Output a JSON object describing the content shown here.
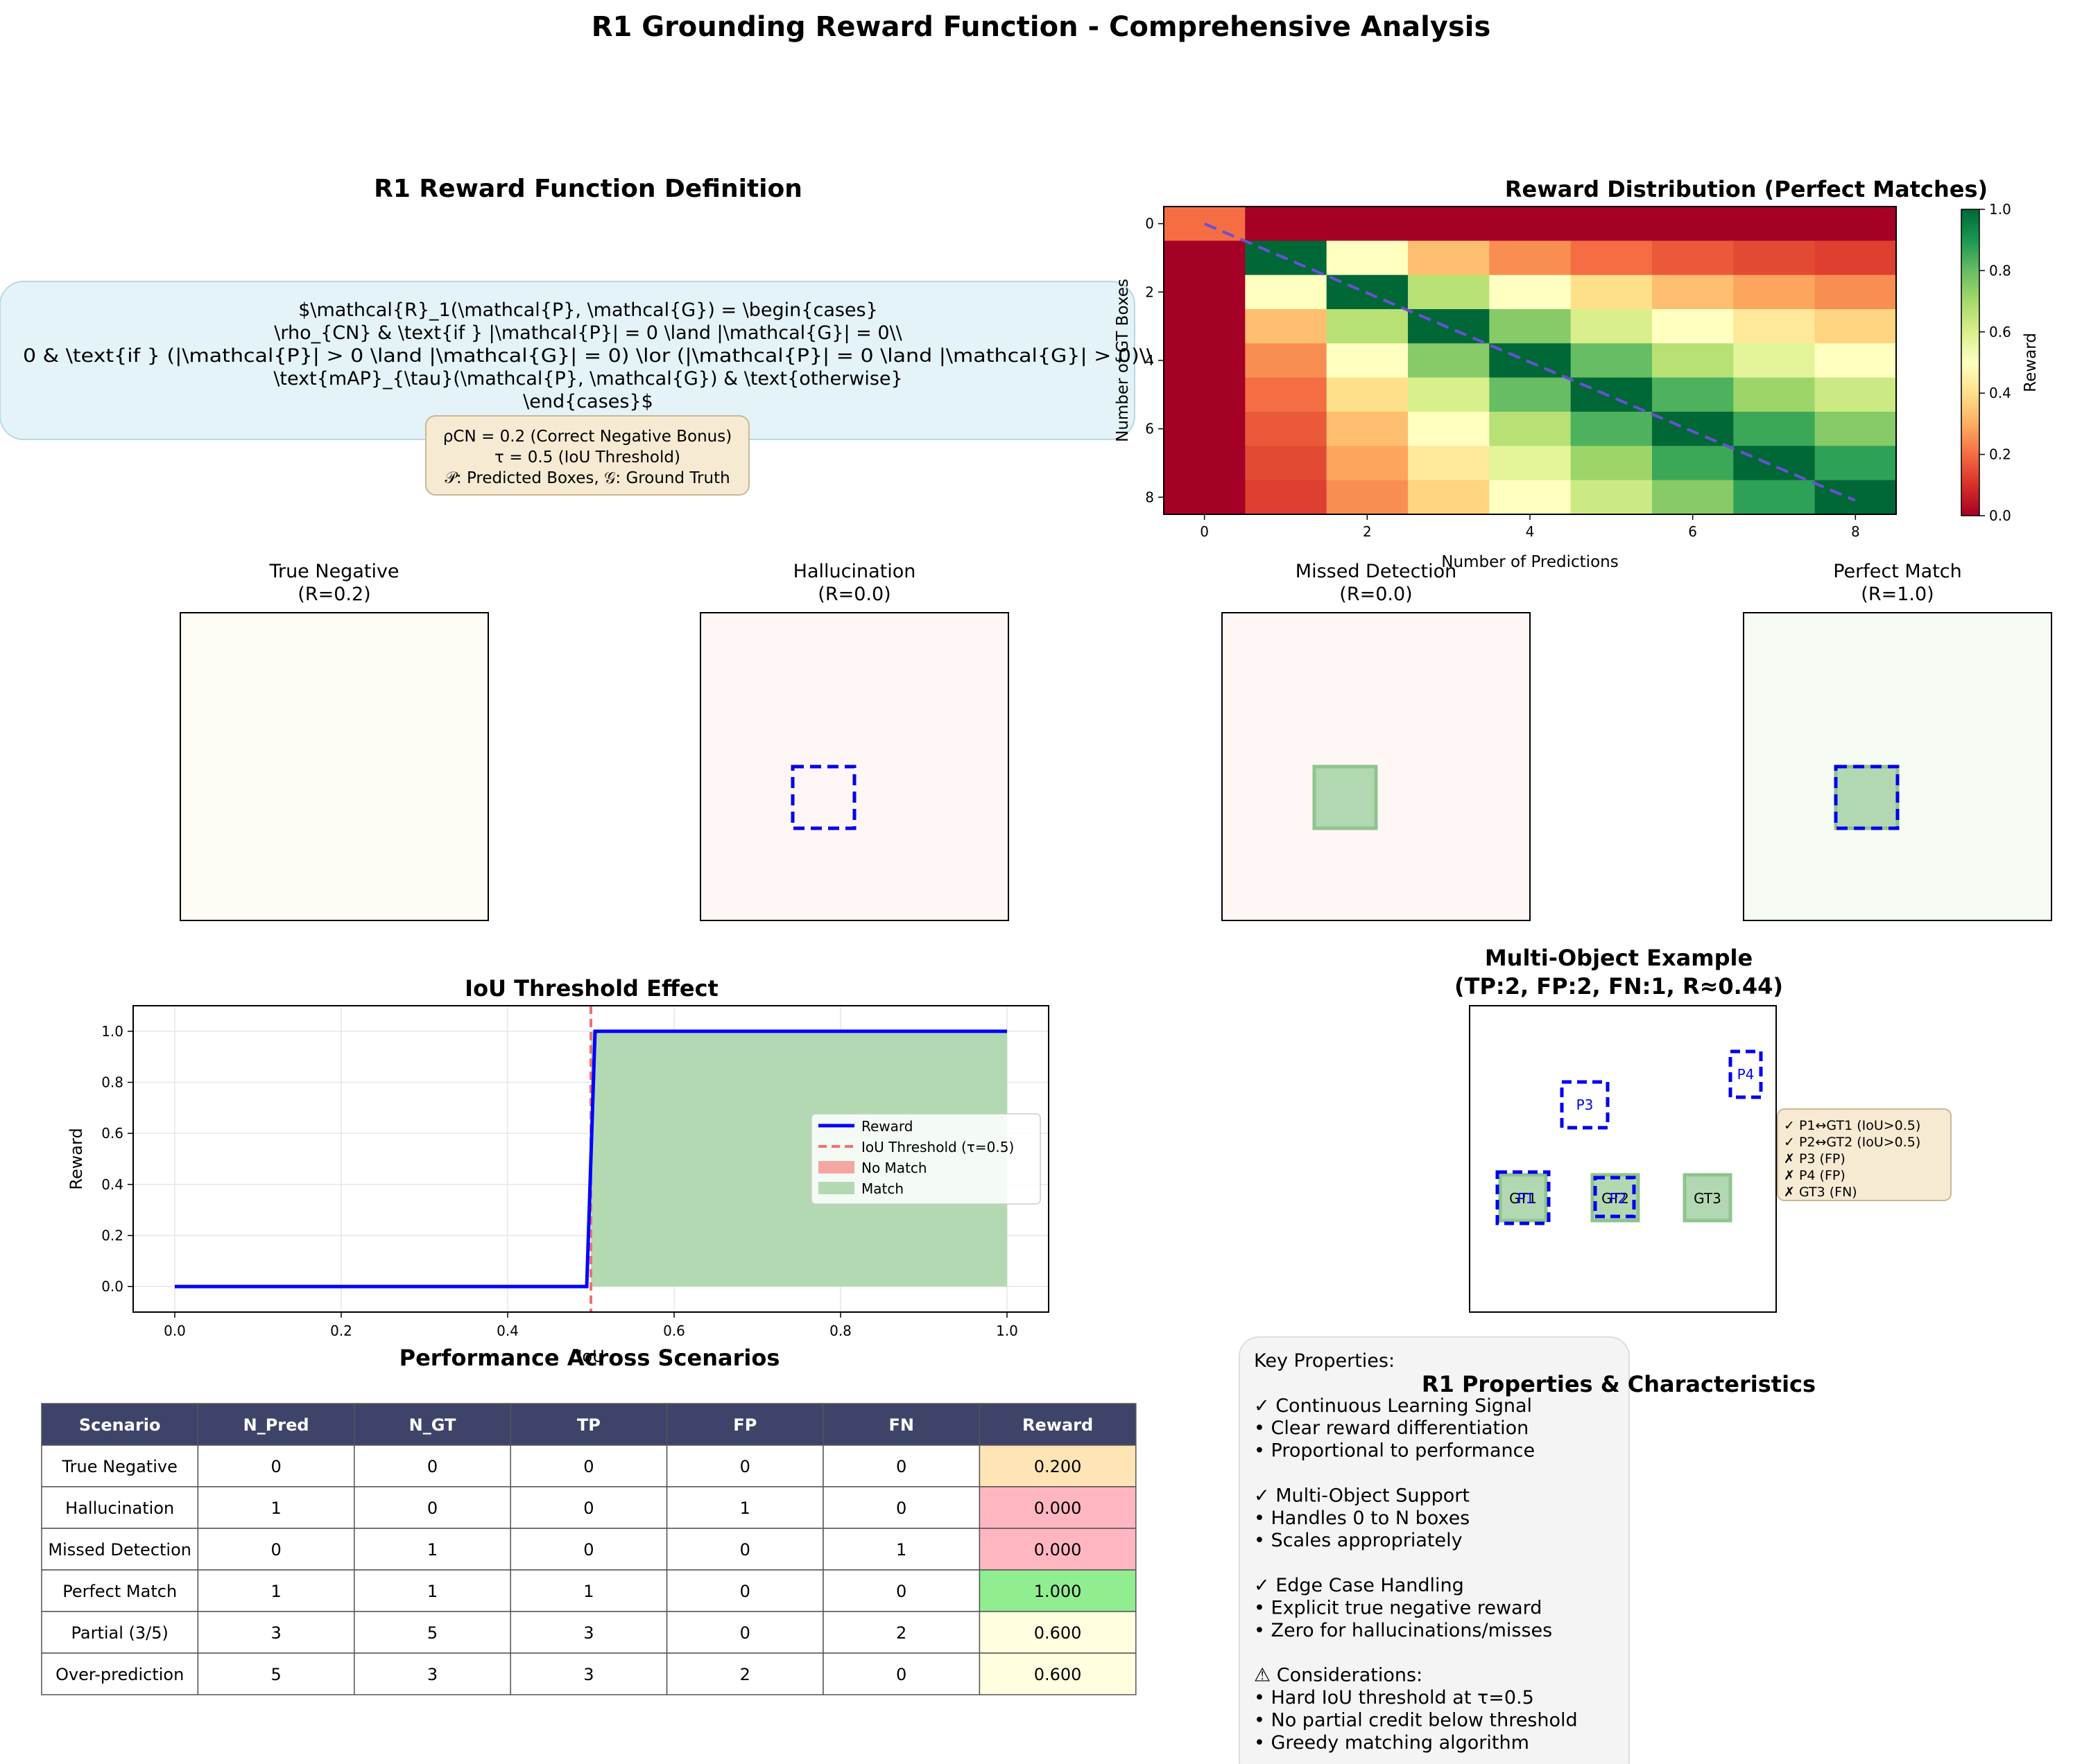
{
  "figure_title": "R1 Grounding Reward Function - Comprehensive Analysis",
  "definition": {
    "title": "R1 Reward Function Definition",
    "formula_lines": [
      "$\\mathcal{R}_1(\\mathcal{P}, \\mathcal{G}) = \\begin{cases}",
      "\\rho_{CN} & \\text{if } |\\mathcal{P}| = 0 \\land |\\mathcal{G}| = 0\\\\",
      "0 & \\text{if } (|\\mathcal{P}| > 0 \\land |\\mathcal{G}| = 0) \\lor (|\\mathcal{P}| = 0 \\land |\\mathcal{G}| > 0)\\\\",
      "\\text{mAP}_{\\tau}(\\mathcal{P}, \\mathcal{G}) & \\text{otherwise}",
      "\\end{cases}$"
    ],
    "params": [
      "ρCN = 0.2 (Correct Negative Bonus)",
      "τ = 0.5 (IoU Threshold)",
      "𝒫: Predicted Boxes, 𝒢: Ground Truth"
    ]
  },
  "chart_data": [
    {
      "type": "heatmap",
      "title": "Reward Distribution (Perfect Matches)",
      "xlabel": "Number of Predictions",
      "ylabel": "Number of GT Boxes",
      "x": [
        0,
        1,
        2,
        3,
        4,
        5,
        6,
        7,
        8
      ],
      "y": [
        0,
        1,
        2,
        3,
        4,
        5,
        6,
        7,
        8
      ],
      "x_ticks": [
        0,
        2,
        4,
        6,
        8
      ],
      "y_ticks": [
        0,
        2,
        4,
        6,
        8
      ],
      "colorbar": {
        "label": "Reward",
        "range": [
          0,
          1
        ],
        "ticks": [
          "0.0",
          "0.2",
          "0.4",
          "0.6",
          "0.8",
          "1.0"
        ]
      },
      "colormap": "RdYlGn",
      "diagonal_line": "dashed",
      "values": [
        [
          0.2,
          0,
          0,
          0,
          0,
          0,
          0,
          0,
          0
        ],
        [
          0,
          1.0,
          0.5,
          0.333,
          0.25,
          0.2,
          0.167,
          0.143,
          0.125
        ],
        [
          0,
          0.5,
          1.0,
          0.667,
          0.5,
          0.4,
          0.333,
          0.286,
          0.25
        ],
        [
          0,
          0.333,
          0.667,
          1.0,
          0.75,
          0.6,
          0.5,
          0.429,
          0.375
        ],
        [
          0,
          0.25,
          0.5,
          0.75,
          1.0,
          0.8,
          0.667,
          0.571,
          0.5
        ],
        [
          0,
          0.2,
          0.4,
          0.6,
          0.8,
          1.0,
          0.833,
          0.714,
          0.625
        ],
        [
          0,
          0.167,
          0.333,
          0.5,
          0.667,
          0.833,
          1.0,
          0.857,
          0.75
        ],
        [
          0,
          0.143,
          0.286,
          0.429,
          0.571,
          0.714,
          0.857,
          1.0,
          0.875
        ],
        [
          0,
          0.125,
          0.25,
          0.375,
          0.5,
          0.625,
          0.75,
          0.875,
          1.0
        ]
      ]
    },
    {
      "type": "line",
      "title": "IoU Threshold Effect",
      "xlabel": "IoU",
      "ylabel": "Reward",
      "xlim": [
        -0.05,
        1.05
      ],
      "ylim": [
        -0.1,
        1.1
      ],
      "x_ticks": [
        "0.0",
        "0.2",
        "0.4",
        "0.6",
        "0.8",
        "1.0"
      ],
      "y_ticks": [
        "0.0",
        "0.2",
        "0.4",
        "0.6",
        "0.8",
        "1.0"
      ],
      "grid": true,
      "legend_position": "center-right",
      "threshold": 0.5,
      "series": [
        {
          "name": "Reward",
          "x": [
            0,
            0.495,
            0.505,
            1.0
          ],
          "values": [
            0,
            0,
            1,
            1
          ],
          "color": "#0000ff"
        },
        {
          "name": "IoU Threshold (τ=0.5)",
          "color": "#f07070"
        },
        {
          "name": "No Match",
          "color": "#f4a6a0"
        },
        {
          "name": "Match",
          "x": [
            0.5,
            1.0
          ],
          "values": [
            1,
            1
          ],
          "color": "#b3d9b3"
        }
      ]
    },
    {
      "type": "table",
      "title": "Performance Across Scenarios",
      "columns": [
        "Scenario",
        "N_Pred",
        "N_GT",
        "TP",
        "FP",
        "FN",
        "Reward"
      ],
      "rows": [
        [
          "True Negative",
          "0",
          "0",
          "0",
          "0",
          "0",
          "0.200"
        ],
        [
          "Hallucination",
          "1",
          "0",
          "0",
          "1",
          "0",
          "0.000"
        ],
        [
          "Missed Detection",
          "0",
          "1",
          "0",
          "0",
          "1",
          "0.000"
        ],
        [
          "Perfect Match",
          "1",
          "1",
          "1",
          "0",
          "0",
          "1.000"
        ],
        [
          "Partial (3/5)",
          "3",
          "5",
          "3",
          "0",
          "2",
          "0.600"
        ],
        [
          "Over-prediction",
          "5",
          "3",
          "3",
          "2",
          "0",
          "0.600"
        ]
      ],
      "reward_colors": [
        "#ffe4b5",
        "#ffb6c1",
        "#ffb6c1",
        "#90ee90",
        "#ffffe0",
        "#ffffe0"
      ],
      "header_color": "#3e4469"
    }
  ],
  "scenarios": [
    {
      "title": "True Negative",
      "reward": "(R=0.2)",
      "bg": "#fffbf5",
      "gt": false,
      "pred": false
    },
    {
      "title": "Hallucination",
      "reward": "(R=0.0)",
      "bg": "#fff6f6",
      "gt": false,
      "pred": true
    },
    {
      "title": "Missed Detection",
      "reward": "(R=0.0)",
      "bg": "#fff6f6",
      "gt": true,
      "pred": false
    },
    {
      "title": "Perfect Match",
      "reward": "(R=1.0)",
      "bg": "#f6fcf4",
      "gt": true,
      "pred": true
    }
  ],
  "multi_object": {
    "title_line1": "Multi-Object Example",
    "title_line2": "(TP:2, FP:2, FN:1, R≈0.44)",
    "gt_labels": [
      "GT1",
      "GT2",
      "GT3"
    ],
    "pred_labels": [
      "P1",
      "P2",
      "P3",
      "P4"
    ],
    "legend_lines": [
      "✓ P1↔GT1 (IoU>0.5)",
      "✓ P2↔GT2 (IoU>0.5)",
      "✗ P3 (FP)",
      "✗ P4 (FP)",
      "✗ GT3 (FN)"
    ]
  },
  "properties": {
    "title": "R1 Properties & Characteristics",
    "lines": [
      "Key Properties:",
      "",
      "✓ Continuous Learning Signal",
      "   • Clear reward differentiation",
      "   • Proportional to performance",
      "",
      "✓ Multi-Object Support",
      "   • Handles 0 to N boxes",
      "   • Scales appropriately",
      "",
      "✓ Edge Case Handling",
      "   • Explicit true negative reward",
      "   • Zero for hallucinations/misses",
      "",
      "⚠ Considerations:",
      "   • Hard IoU threshold at τ=0.5",
      "   • No partial credit below threshold",
      "   • Greedy matching algorithm"
    ]
  },
  "colors": {
    "pred": "#0000ee",
    "gt_fill": "#b2d8b2",
    "gt_edge": "#8fc48f",
    "formula_box": "#e3f3f7",
    "param_box": "#f7ead3"
  }
}
